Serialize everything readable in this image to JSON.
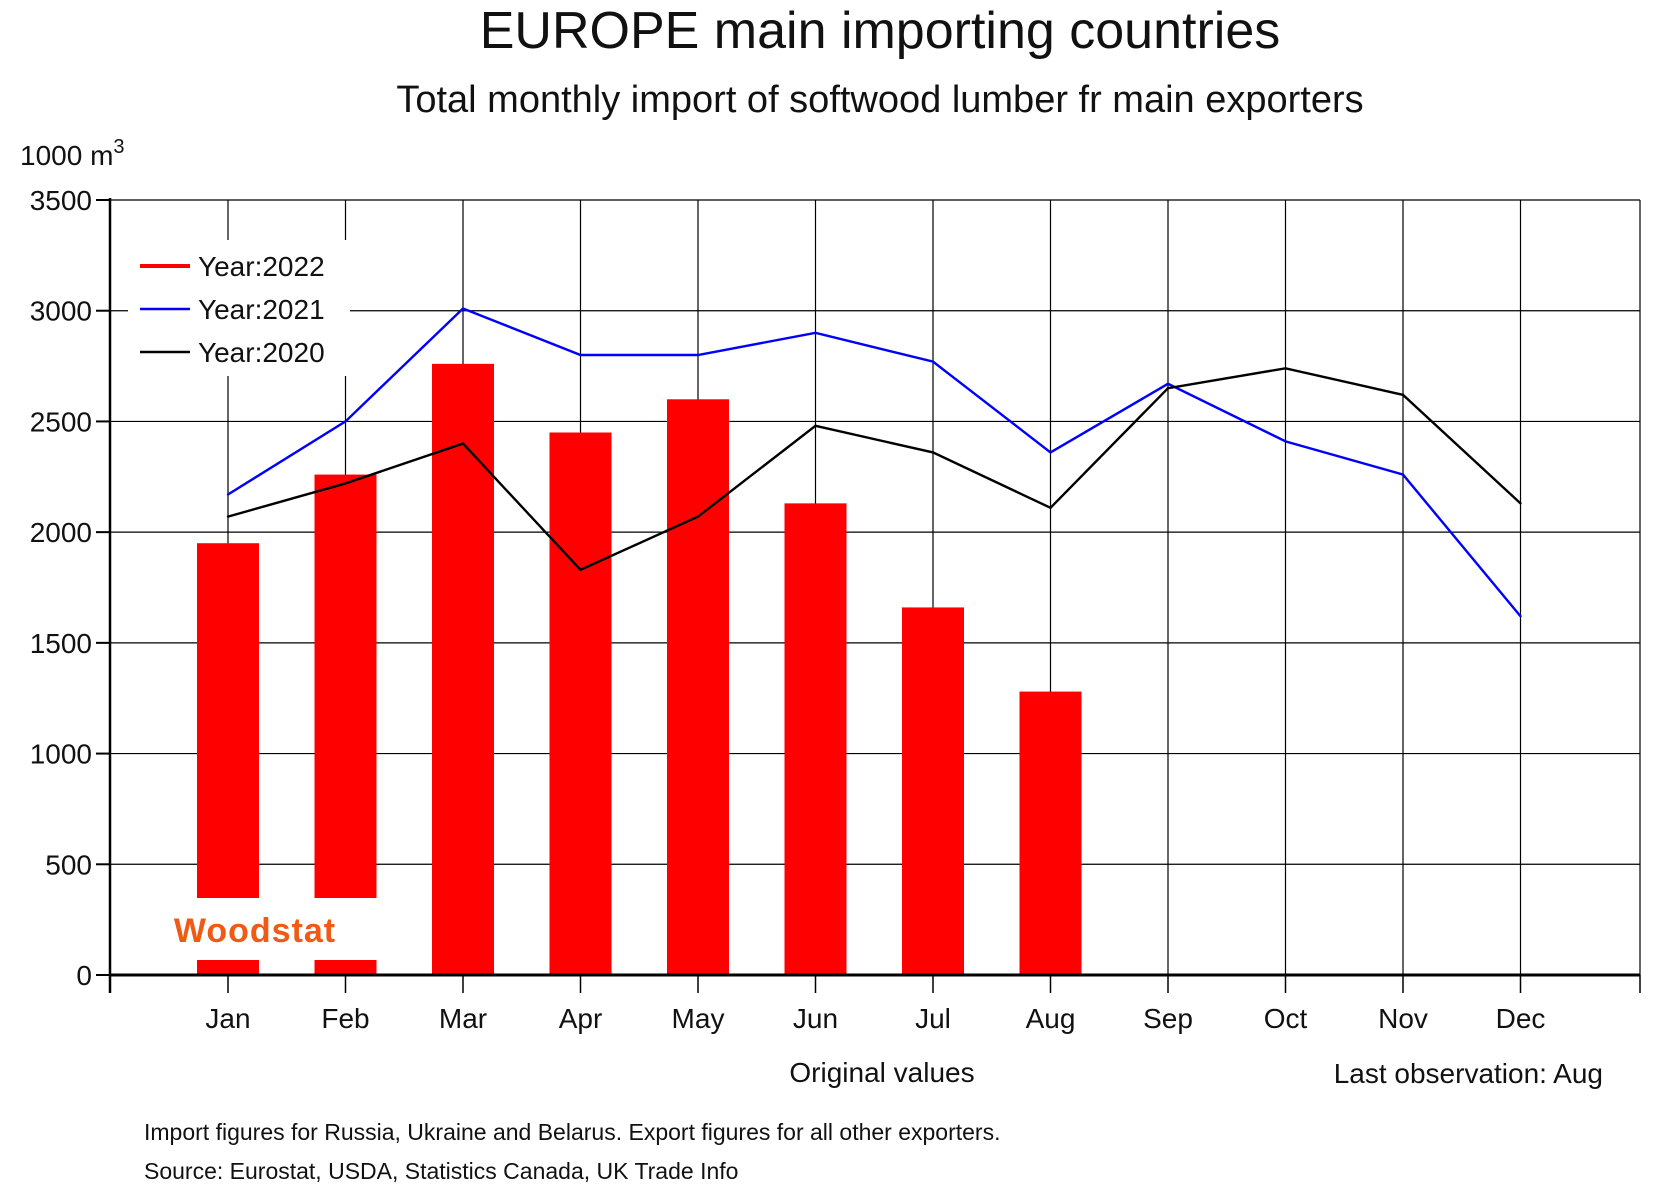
{
  "chart_data": {
    "type": "bar",
    "title": "EUROPE main importing countries",
    "subtitle": "Total monthly import of softwood lumber fr main exporters",
    "ylabel_unit": "1000 m",
    "ylabel_unit_sup": "3",
    "ylim": [
      0,
      3500
    ],
    "yticks": [
      "0",
      "500",
      "1000",
      "1500",
      "2000",
      "2500",
      "3000",
      "3500"
    ],
    "categories": [
      "Jan",
      "Feb",
      "Mar",
      "Apr",
      "May",
      "Jun",
      "Jul",
      "Aug",
      "Sep",
      "Oct",
      "Nov",
      "Dec"
    ],
    "grid": true,
    "legend_position": "top-left",
    "series": [
      {
        "name": "Year:2022",
        "kind": "bar",
        "color": "#ff0000",
        "values": [
          1950,
          2260,
          2760,
          2450,
          2600,
          2130,
          1660,
          1280,
          null,
          null,
          null,
          null
        ]
      },
      {
        "name": "Year:2021",
        "kind": "line",
        "color": "#0000ff",
        "values": [
          2170,
          2500,
          3010,
          2800,
          2800,
          2900,
          2770,
          2360,
          2670,
          2410,
          2260,
          1620
        ]
      },
      {
        "name": "Year:2020",
        "kind": "line",
        "color": "#000000",
        "values": [
          2070,
          2220,
          2400,
          1830,
          2070,
          2480,
          2360,
          2110,
          2650,
          2740,
          2620,
          2130
        ]
      }
    ],
    "xlabel_note": "Original values",
    "last_observation": "Last observation: Aug",
    "footnotes": [
      "Import figures for Russia, Ukraine and Belarus. Export figures for all other exporters.",
      "Source: Eurostat, USDA, Statistics Canada, UK Trade Info"
    ],
    "logo_text": "Woodstat"
  }
}
